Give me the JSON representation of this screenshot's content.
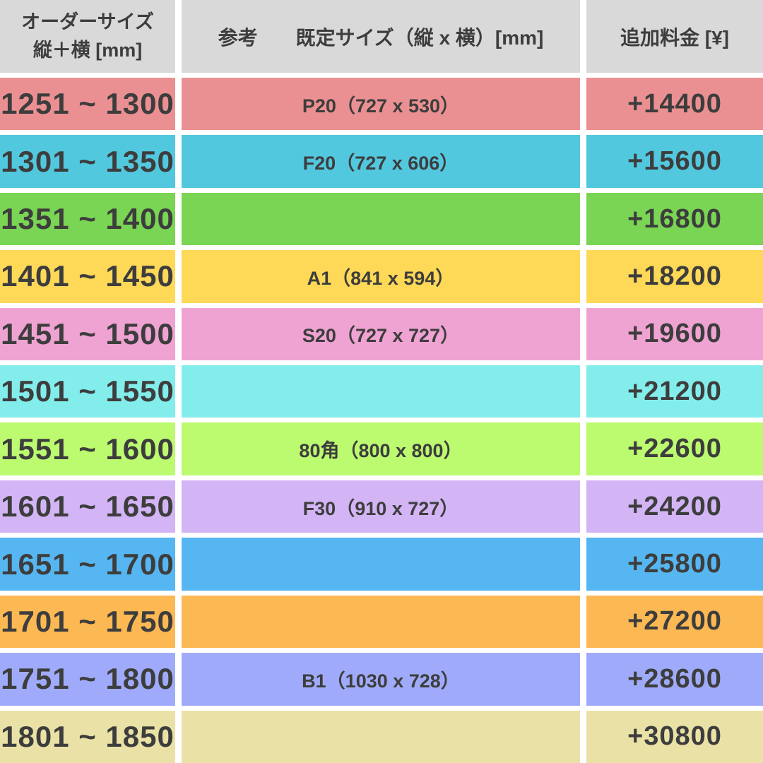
{
  "chart_data": {
    "type": "table",
    "header": {
      "order_size_line1": "オーダーサイズ",
      "order_size_line2": "縦＋横 [mm]",
      "reference_label": "参考",
      "reference_size_label": "既定サイズ（縦 x 横）[mm]",
      "fee_label": "追加料金 [¥]"
    },
    "rows": [
      {
        "order_size": "1251 ~ 1300",
        "reference": "P20（727 x 530）",
        "fee": "+14400",
        "row_color": "#eb9092"
      },
      {
        "order_size": "1301 ~ 1350",
        "reference": "F20（727 x 606）",
        "fee": "+15600",
        "row_color": "#52c8de"
      },
      {
        "order_size": "1351 ~ 1400",
        "reference": "",
        "fee": "+16800",
        "row_color": "#79d553"
      },
      {
        "order_size": "1401 ~ 1450",
        "reference": "A1（841 x 594）",
        "fee": "+18200",
        "row_color": "#fed857"
      },
      {
        "order_size": "1451 ~ 1500",
        "reference": "S20（727 x 727）",
        "fee": "+19600",
        "row_color": "#efa3d2"
      },
      {
        "order_size": "1501 ~ 1550",
        "reference": "",
        "fee": "+21200",
        "row_color": "#83edec"
      },
      {
        "order_size": "1551 ~ 1600",
        "reference": "80角（800 x 800）",
        "fee": "+22600",
        "row_color": "#bcfa70"
      },
      {
        "order_size": "1601 ~ 1650",
        "reference": "F30（910 x 727）",
        "fee": "+24200",
        "row_color": "#d3b5f6"
      },
      {
        "order_size": "1651 ~ 1700",
        "reference": "",
        "fee": "+25800",
        "row_color": "#56b6f1"
      },
      {
        "order_size": "1701 ~ 1750",
        "reference": "",
        "fee": "+27200",
        "row_color": "#fcb853"
      },
      {
        "order_size": "1751 ~ 1800",
        "reference": "B1（1030 x 728）",
        "fee": "+28600",
        "row_color": "#9fabfa"
      },
      {
        "order_size": "1801 ~ 1850",
        "reference": "",
        "fee": "+30800",
        "row_color": "#eae1a6"
      }
    ]
  },
  "colors": {
    "header_bg": "#d9d9d9",
    "text": "#3d3d3d",
    "divider": "#ffffff"
  }
}
